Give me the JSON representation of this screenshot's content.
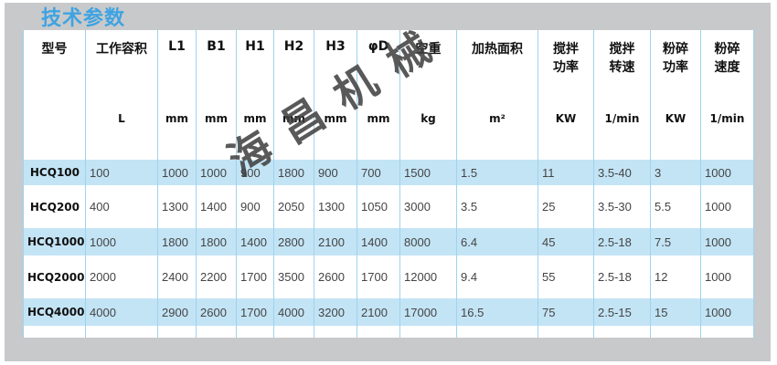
{
  "title": "技术参数",
  "watermark": "海昌机械",
  "headers": [
    {
      "name": "型号",
      "unit": ""
    },
    {
      "name": "工作容积",
      "unit": "L"
    },
    {
      "name": "L1",
      "unit": "mm"
    },
    {
      "name": "B1",
      "unit": "mm"
    },
    {
      "name": "H1",
      "unit": "mm"
    },
    {
      "name": "H2",
      "unit": "mm"
    },
    {
      "name": "H3",
      "unit": "mm"
    },
    {
      "name": "φD",
      "unit": "mm"
    },
    {
      "name": "空重",
      "unit": "kg"
    },
    {
      "name": "加热面积",
      "unit": "m²"
    },
    {
      "name": "搅拌\n功率",
      "unit": "KW"
    },
    {
      "name": "搅拌\n转速",
      "unit": "1/min"
    },
    {
      "name": "粉碎\n功率",
      "unit": "KW"
    },
    {
      "name": "粉碎\n速度",
      "unit": "1/min"
    }
  ],
  "rows": [
    [
      "HCQ100",
      "100",
      "1000",
      "1000",
      "900",
      "1800",
      "900",
      "700",
      "1500",
      "1.5",
      "11",
      "3.5-40",
      "3",
      "1000"
    ],
    [
      "HCQ200",
      "400",
      "1300",
      "1400",
      "900",
      "2050",
      "1300",
      "1050",
      "3000",
      "3.5",
      "25",
      "3.5-30",
      "5.5",
      "1000"
    ],
    [
      "HCQ1000",
      "1000",
      "1800",
      "1800",
      "1400",
      "2800",
      "2100",
      "1400",
      "8000",
      "6.4",
      "45",
      "2.5-18",
      "7.5",
      "1000"
    ],
    [
      "HCQ2000",
      "2000",
      "2400",
      "2200",
      "1700",
      "3500",
      "2600",
      "1700",
      "12000",
      "9.4",
      "55",
      "2.5-18",
      "12",
      "1000"
    ],
    [
      "HCQ4000",
      "4000",
      "2900",
      "2600",
      "1700",
      "4000",
      "3200",
      "2100",
      "17000",
      "16.5",
      "75",
      "2.5-15",
      "15",
      "1000"
    ]
  ]
}
